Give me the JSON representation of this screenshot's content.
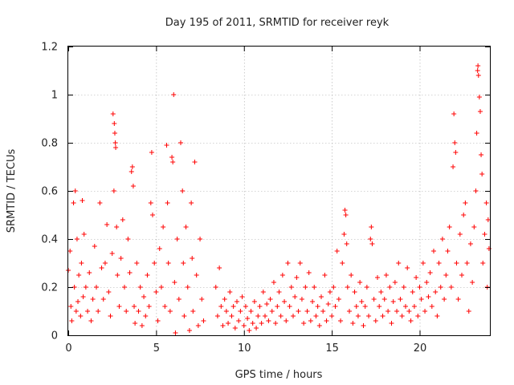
{
  "chart_data": {
    "type": "scatter",
    "title": "Day 195 of 2011, SRMTID for receiver reyk",
    "xlabel": "GPS time / hours",
    "ylabel": "SRMTID / TECUs",
    "xlim": [
      0,
      24
    ],
    "ylim": [
      0,
      1.2
    ],
    "xticks": [
      0,
      5,
      10,
      15,
      20
    ],
    "xtick_labels": [
      "0",
      "5",
      "10",
      "15",
      "20"
    ],
    "yticks": [
      0,
      0.2,
      0.4,
      0.6,
      0.8,
      1.0,
      1.2
    ],
    "ytick_labels": [
      "0",
      "0.2",
      "0.4",
      "0.6",
      "0.8",
      "1",
      "1.2"
    ],
    "grid": true,
    "marker": "+",
    "color": "#ff0000",
    "series": [
      {
        "name": "SRMTID",
        "points": [
          [
            0.0,
            0.27
          ],
          [
            0.1,
            0.35
          ],
          [
            0.15,
            0.12
          ],
          [
            0.2,
            0.06
          ],
          [
            0.3,
            0.55
          ],
          [
            0.35,
            0.2
          ],
          [
            0.4,
            0.6
          ],
          [
            0.45,
            0.1
          ],
          [
            0.5,
            0.4
          ],
          [
            0.55,
            0.14
          ],
          [
            0.6,
            0.25
          ],
          [
            0.7,
            0.08
          ],
          [
            0.75,
            0.3
          ],
          [
            0.8,
            0.56
          ],
          [
            0.85,
            0.16
          ],
          [
            0.9,
            0.42
          ],
          [
            1.0,
            0.2
          ],
          [
            1.1,
            0.1
          ],
          [
            1.2,
            0.26
          ],
          [
            1.3,
            0.06
          ],
          [
            1.4,
            0.15
          ],
          [
            1.5,
            0.37
          ],
          [
            1.6,
            0.2
          ],
          [
            1.7,
            0.1
          ],
          [
            1.8,
            0.55
          ],
          [
            1.9,
            0.28
          ],
          [
            2.0,
            0.15
          ],
          [
            2.1,
            0.3
          ],
          [
            2.2,
            0.46
          ],
          [
            2.3,
            0.18
          ],
          [
            2.4,
            0.08
          ],
          [
            2.5,
            0.34
          ],
          [
            2.55,
            0.92
          ],
          [
            2.6,
            0.6
          ],
          [
            2.62,
            0.88
          ],
          [
            2.65,
            0.84
          ],
          [
            2.68,
            0.8
          ],
          [
            2.7,
            0.78
          ],
          [
            2.75,
            0.45
          ],
          [
            2.8,
            0.25
          ],
          [
            2.9,
            0.12
          ],
          [
            3.0,
            0.32
          ],
          [
            3.1,
            0.48
          ],
          [
            3.2,
            0.2
          ],
          [
            3.3,
            0.1
          ],
          [
            3.4,
            0.4
          ],
          [
            3.5,
            0.26
          ],
          [
            3.6,
            0.68
          ],
          [
            3.65,
            0.7
          ],
          [
            3.7,
            0.62
          ],
          [
            3.75,
            0.12
          ],
          [
            3.8,
            0.05
          ],
          [
            3.9,
            0.3
          ],
          [
            4.0,
            0.1
          ],
          [
            4.1,
            0.2
          ],
          [
            4.2,
            0.04
          ],
          [
            4.3,
            0.16
          ],
          [
            4.4,
            0.08
          ],
          [
            4.5,
            0.25
          ],
          [
            4.6,
            0.12
          ],
          [
            4.7,
            0.55
          ],
          [
            4.75,
            0.76
          ],
          [
            4.8,
            0.5
          ],
          [
            4.9,
            0.3
          ],
          [
            5.0,
            0.18
          ],
          [
            5.1,
            0.06
          ],
          [
            5.2,
            0.36
          ],
          [
            5.3,
            0.2
          ],
          [
            5.4,
            0.45
          ],
          [
            5.5,
            0.12
          ],
          [
            5.6,
            0.79
          ],
          [
            5.65,
            0.55
          ],
          [
            5.7,
            0.3
          ],
          [
            5.8,
            0.1
          ],
          [
            5.9,
            0.74
          ],
          [
            5.95,
            0.72
          ],
          [
            6.0,
            1.0
          ],
          [
            6.05,
            0.22
          ],
          [
            6.1,
            0.01
          ],
          [
            6.2,
            0.4
          ],
          [
            6.3,
            0.15
          ],
          [
            6.4,
            0.8
          ],
          [
            6.5,
            0.6
          ],
          [
            6.55,
            0.3
          ],
          [
            6.6,
            0.08
          ],
          [
            6.7,
            0.45
          ],
          [
            6.8,
            0.2
          ],
          [
            6.9,
            0.02
          ],
          [
            7.0,
            0.55
          ],
          [
            7.05,
            0.32
          ],
          [
            7.1,
            0.1
          ],
          [
            7.2,
            0.72
          ],
          [
            7.3,
            0.25
          ],
          [
            7.4,
            0.04
          ],
          [
            7.5,
            0.4
          ],
          [
            7.6,
            0.15
          ],
          [
            7.7,
            0.06
          ],
          [
            8.4,
            0.2
          ],
          [
            8.5,
            0.08
          ],
          [
            8.6,
            0.28
          ],
          [
            8.7,
            0.12
          ],
          [
            8.8,
            0.04
          ],
          [
            8.9,
            0.15
          ],
          [
            9.0,
            0.1
          ],
          [
            9.1,
            0.05
          ],
          [
            9.2,
            0.18
          ],
          [
            9.3,
            0.08
          ],
          [
            9.4,
            0.12
          ],
          [
            9.5,
            0.03
          ],
          [
            9.6,
            0.14
          ],
          [
            9.7,
            0.06
          ],
          [
            9.8,
            0.1
          ],
          [
            9.9,
            0.16
          ],
          [
            10.0,
            0.04
          ],
          [
            10.1,
            0.12
          ],
          [
            10.2,
            0.07
          ],
          [
            10.3,
            0.02
          ],
          [
            10.4,
            0.1
          ],
          [
            10.5,
            0.05
          ],
          [
            10.6,
            0.14
          ],
          [
            10.7,
            0.03
          ],
          [
            10.8,
            0.08
          ],
          [
            10.9,
            0.12
          ],
          [
            11.0,
            0.05
          ],
          [
            11.1,
            0.18
          ],
          [
            11.2,
            0.08
          ],
          [
            11.3,
            0.13
          ],
          [
            11.4,
            0.06
          ],
          [
            11.5,
            0.15
          ],
          [
            11.6,
            0.1
          ],
          [
            11.7,
            0.22
          ],
          [
            11.8,
            0.05
          ],
          [
            11.9,
            0.12
          ],
          [
            12.0,
            0.18
          ],
          [
            12.1,
            0.08
          ],
          [
            12.2,
            0.25
          ],
          [
            12.3,
            0.14
          ],
          [
            12.4,
            0.06
          ],
          [
            12.5,
            0.3
          ],
          [
            12.6,
            0.12
          ],
          [
            12.7,
            0.2
          ],
          [
            12.8,
            0.08
          ],
          [
            12.9,
            0.16
          ],
          [
            13.0,
            0.24
          ],
          [
            13.1,
            0.1
          ],
          [
            13.2,
            0.3
          ],
          [
            13.3,
            0.15
          ],
          [
            13.4,
            0.05
          ],
          [
            13.5,
            0.2
          ],
          [
            13.6,
            0.1
          ],
          [
            13.7,
            0.26
          ],
          [
            13.8,
            0.06
          ],
          [
            13.9,
            0.14
          ],
          [
            14.0,
            0.2
          ],
          [
            14.1,
            0.08
          ],
          [
            14.2,
            0.12
          ],
          [
            14.3,
            0.04
          ],
          [
            14.4,
            0.16
          ],
          [
            14.5,
            0.1
          ],
          [
            14.6,
            0.25
          ],
          [
            14.7,
            0.06
          ],
          [
            14.8,
            0.13
          ],
          [
            14.9,
            0.18
          ],
          [
            15.0,
            0.08
          ],
          [
            15.1,
            0.2
          ],
          [
            15.2,
            0.12
          ],
          [
            15.3,
            0.35
          ],
          [
            15.4,
            0.15
          ],
          [
            15.5,
            0.06
          ],
          [
            15.6,
            0.3
          ],
          [
            15.7,
            0.42
          ],
          [
            15.75,
            0.52
          ],
          [
            15.8,
            0.5
          ],
          [
            15.85,
            0.38
          ],
          [
            15.9,
            0.2
          ],
          [
            16.0,
            0.1
          ],
          [
            16.1,
            0.25
          ],
          [
            16.2,
            0.05
          ],
          [
            16.3,
            0.18
          ],
          [
            16.4,
            0.12
          ],
          [
            16.5,
            0.08
          ],
          [
            16.6,
            0.22
          ],
          [
            16.7,
            0.14
          ],
          [
            16.8,
            0.04
          ],
          [
            16.9,
            0.12
          ],
          [
            17.0,
            0.2
          ],
          [
            17.1,
            0.08
          ],
          [
            17.2,
            0.4
          ],
          [
            17.25,
            0.45
          ],
          [
            17.3,
            0.38
          ],
          [
            17.4,
            0.15
          ],
          [
            17.5,
            0.06
          ],
          [
            17.6,
            0.24
          ],
          [
            17.7,
            0.12
          ],
          [
            17.8,
            0.18
          ],
          [
            17.9,
            0.08
          ],
          [
            18.0,
            0.15
          ],
          [
            18.1,
            0.25
          ],
          [
            18.2,
            0.1
          ],
          [
            18.3,
            0.2
          ],
          [
            18.4,
            0.05
          ],
          [
            18.5,
            0.14
          ],
          [
            18.6,
            0.22
          ],
          [
            18.7,
            0.1
          ],
          [
            18.8,
            0.3
          ],
          [
            18.9,
            0.15
          ],
          [
            19.0,
            0.08
          ],
          [
            19.1,
            0.2
          ],
          [
            19.2,
            0.12
          ],
          [
            19.3,
            0.28
          ],
          [
            19.4,
            0.1
          ],
          [
            19.5,
            0.06
          ],
          [
            19.6,
            0.18
          ],
          [
            19.7,
            0.12
          ],
          [
            19.8,
            0.24
          ],
          [
            19.9,
            0.08
          ],
          [
            20.0,
            0.2
          ],
          [
            20.1,
            0.15
          ],
          [
            20.2,
            0.3
          ],
          [
            20.3,
            0.1
          ],
          [
            20.4,
            0.22
          ],
          [
            20.5,
            0.16
          ],
          [
            20.6,
            0.26
          ],
          [
            20.7,
            0.12
          ],
          [
            20.8,
            0.35
          ],
          [
            20.9,
            0.18
          ],
          [
            21.0,
            0.08
          ],
          [
            21.1,
            0.3
          ],
          [
            21.2,
            0.2
          ],
          [
            21.3,
            0.4
          ],
          [
            21.4,
            0.15
          ],
          [
            21.5,
            0.25
          ],
          [
            21.6,
            0.35
          ],
          [
            21.7,
            0.45
          ],
          [
            21.8,
            0.2
          ],
          [
            21.9,
            0.7
          ],
          [
            21.95,
            0.92
          ],
          [
            22.0,
            0.8
          ],
          [
            22.05,
            0.76
          ],
          [
            22.1,
            0.3
          ],
          [
            22.2,
            0.15
          ],
          [
            22.3,
            0.42
          ],
          [
            22.4,
            0.25
          ],
          [
            22.5,
            0.5
          ],
          [
            22.6,
            0.55
          ],
          [
            22.7,
            0.3
          ],
          [
            22.8,
            0.1
          ],
          [
            22.9,
            0.38
          ],
          [
            23.0,
            0.22
          ],
          [
            23.1,
            0.45
          ],
          [
            23.2,
            0.6
          ],
          [
            23.25,
            0.84
          ],
          [
            23.3,
            1.1
          ],
          [
            23.32,
            1.12
          ],
          [
            23.35,
            1.08
          ],
          [
            23.4,
            0.99
          ],
          [
            23.45,
            0.93
          ],
          [
            23.5,
            0.75
          ],
          [
            23.55,
            0.67
          ],
          [
            23.6,
            0.3
          ],
          [
            23.7,
            0.42
          ],
          [
            23.8,
            0.55
          ],
          [
            23.85,
            0.2
          ],
          [
            23.9,
            0.48
          ],
          [
            23.95,
            0.36
          ]
        ]
      }
    ]
  }
}
